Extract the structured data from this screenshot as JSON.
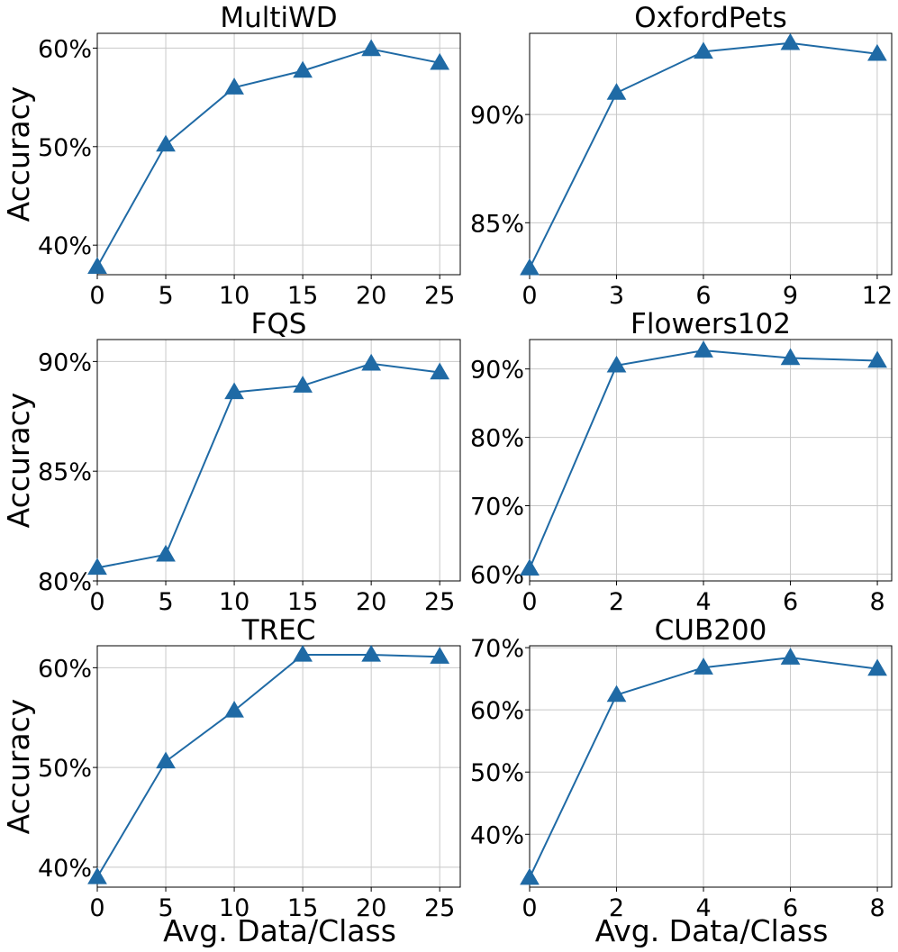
{
  "colors": {
    "series": "#1f6aa5"
  },
  "chart_data": [
    {
      "type": "line",
      "marker": "triangle",
      "title": "MultiWD",
      "xlabel": "",
      "ylabel": "Accuracy",
      "x": [
        0,
        5,
        10,
        15,
        20,
        25
      ],
      "values": [
        37.8,
        50.2,
        56.0,
        57.7,
        59.9,
        58.5
      ],
      "xlim": [
        0,
        26.5
      ],
      "ylim": [
        37,
        61.5
      ],
      "xticks": [
        0,
        5,
        10,
        15,
        20,
        25
      ],
      "xtick_labels": [
        "0",
        "5",
        "10",
        "15",
        "20",
        "25"
      ],
      "yticks": [
        40,
        50,
        60
      ],
      "ytick_labels": [
        "40%",
        "50%",
        "60%"
      ],
      "grid": true
    },
    {
      "type": "line",
      "marker": "triangle",
      "title": "OxfordPets",
      "xlabel": "",
      "ylabel": "",
      "x": [
        0,
        3,
        6,
        9,
        12
      ],
      "values": [
        82.9,
        91.0,
        92.9,
        93.3,
        92.8
      ],
      "xlim": [
        0,
        12.5
      ],
      "ylim": [
        82.6,
        93.75
      ],
      "xticks": [
        0,
        3,
        6,
        9,
        12
      ],
      "xtick_labels": [
        "0",
        "3",
        "6",
        "9",
        "12"
      ],
      "yticks": [
        85,
        90
      ],
      "ytick_labels": [
        "85%",
        "90%"
      ],
      "grid": true
    },
    {
      "type": "line",
      "marker": "triangle",
      "title": "FQS",
      "xlabel": "",
      "ylabel": "Accuracy",
      "x": [
        0,
        5,
        10,
        15,
        20,
        25
      ],
      "values": [
        80.6,
        81.2,
        88.6,
        88.9,
        89.9,
        89.5
      ],
      "xlim": [
        0,
        26.5
      ],
      "ylim": [
        80,
        91
      ],
      "xticks": [
        0,
        5,
        10,
        15,
        20,
        25
      ],
      "xtick_labels": [
        "0",
        "5",
        "10",
        "15",
        "20",
        "25"
      ],
      "yticks": [
        80,
        85,
        90
      ],
      "ytick_labels": [
        "80%",
        "85%",
        "90%"
      ],
      "grid": true
    },
    {
      "type": "line",
      "marker": "triangle",
      "title": "Flowers102",
      "xlabel": "",
      "ylabel": "",
      "x": [
        0,
        2,
        4,
        6,
        8
      ],
      "values": [
        60.8,
        90.5,
        92.7,
        91.6,
        91.2
      ],
      "xlim": [
        0,
        8.33
      ],
      "ylim": [
        59,
        94.3
      ],
      "xticks": [
        0,
        2,
        4,
        6,
        8
      ],
      "xtick_labels": [
        "0",
        "2",
        "4",
        "6",
        "8"
      ],
      "yticks": [
        60,
        70,
        80,
        90
      ],
      "ytick_labels": [
        "60%",
        "70%",
        "80%",
        "90%"
      ],
      "grid": true
    },
    {
      "type": "line",
      "marker": "triangle",
      "title": "TREC",
      "xlabel": "Avg. Data/Class",
      "ylabel": "Accuracy",
      "x": [
        0,
        5,
        10,
        15,
        20,
        25
      ],
      "values": [
        39.0,
        50.6,
        55.7,
        61.3,
        61.3,
        61.1
      ],
      "xlim": [
        0,
        26.5
      ],
      "ylim": [
        38,
        62.2
      ],
      "xticks": [
        0,
        5,
        10,
        15,
        20,
        25
      ],
      "xtick_labels": [
        "0",
        "5",
        "10",
        "15",
        "20",
        "25"
      ],
      "yticks": [
        40,
        50,
        60
      ],
      "ytick_labels": [
        "40%",
        "50%",
        "60%"
      ],
      "grid": true
    },
    {
      "type": "line",
      "marker": "triangle",
      "title": "CUB200",
      "xlabel": "Avg. Data/Class",
      "ylabel": "",
      "x": [
        0,
        2,
        4,
        6,
        8
      ],
      "values": [
        33.0,
        62.4,
        66.8,
        68.4,
        66.6
      ],
      "xlim": [
        0,
        8.33
      ],
      "ylim": [
        31.5,
        70.3
      ],
      "xticks": [
        0,
        2,
        4,
        6,
        8
      ],
      "xtick_labels": [
        "0",
        "2",
        "4",
        "6",
        "8"
      ],
      "yticks": [
        40,
        50,
        60,
        70
      ],
      "ytick_labels": [
        "40%",
        "50%",
        "60%",
        "70%"
      ],
      "grid": true
    }
  ]
}
